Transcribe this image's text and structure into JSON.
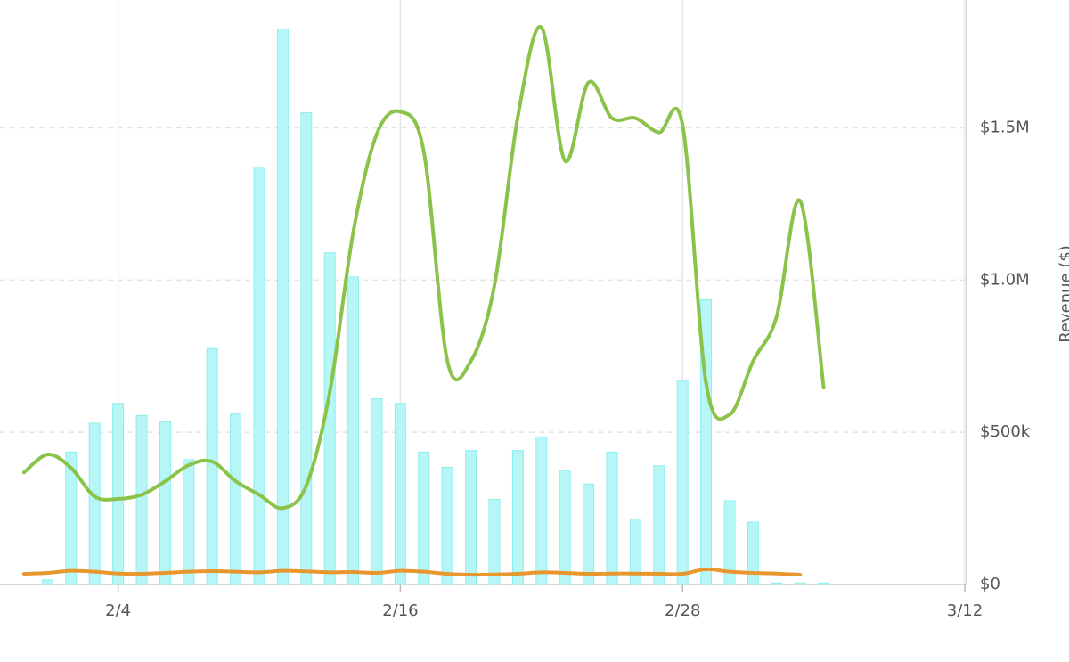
{
  "chart_data": {
    "type": "combo",
    "y_label": "Revenue ($)",
    "categories": [
      null,
      null,
      null,
      null,
      "2/4",
      null,
      null,
      null,
      null,
      null,
      null,
      null,
      null,
      null,
      null,
      null,
      "2/16",
      null,
      null,
      null,
      null,
      null,
      null,
      null,
      null,
      null,
      null,
      null,
      "2/28",
      null,
      null,
      null,
      null,
      null,
      null,
      null,
      null,
      null,
      null,
      null,
      "3/12"
    ],
    "series": [
      {
        "type": "bar",
        "color": "#b6f6f6",
        "values": [
          0,
          15000,
          435000,
          530000,
          595000,
          555000,
          535000,
          410000,
          775000,
          560000,
          1370000,
          1825000,
          1550000,
          1090000,
          1010000,
          610000,
          595000,
          435000,
          385000,
          440000,
          280000,
          440000,
          485000,
          375000,
          330000,
          435000,
          215000,
          390000,
          670000,
          935000,
          275000,
          205000,
          5000,
          5000,
          5000,
          null,
          null,
          null,
          null,
          null,
          null
        ]
      },
      {
        "type": "line",
        "color": "#8bc34a",
        "values": [
          368000,
          427000,
          383000,
          289000,
          281000,
          295000,
          339000,
          392000,
          404000,
          339000,
          295000,
          251000,
          325000,
          632000,
          1158000,
          1480000,
          1553000,
          1421000,
          734000,
          734000,
          982000,
          1538000,
          1830000,
          1392000,
          1649000,
          1532000,
          1532000,
          1485000,
          1509000,
          661000,
          558000,
          734000,
          880000,
          1260000,
          646000,
          null,
          null,
          null,
          null,
          null,
          null
        ]
      },
      {
        "type": "line",
        "color": "#e8962e",
        "values": [
          35000,
          38000,
          45000,
          42000,
          36000,
          35000,
          38000,
          42000,
          44000,
          42000,
          40000,
          45000,
          43000,
          40000,
          41000,
          38000,
          45000,
          42000,
          35000,
          32000,
          33000,
          35000,
          40000,
          38000,
          35000,
          36000,
          36000,
          35000,
          35000,
          50000,
          42000,
          38000,
          36000,
          32000,
          null,
          null,
          null,
          null,
          null,
          null,
          null
        ]
      }
    ],
    "ylim": [
      0,
      1920000
    ],
    "yticks": [
      {
        "value": 0,
        "label": "$0"
      },
      {
        "value": 500000,
        "label": "$500k"
      },
      {
        "value": 1000000,
        "label": "$1.0M"
      },
      {
        "value": 1500000,
        "label": "$1.5M"
      }
    ],
    "grid": true
  }
}
